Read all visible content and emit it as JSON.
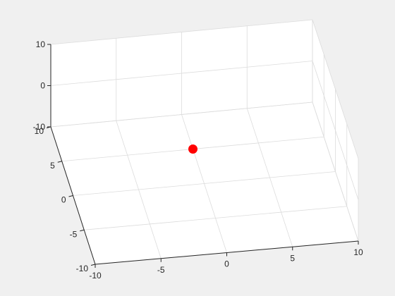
{
  "chart_data": {
    "type": "scatter",
    "title": "",
    "xlabel": "",
    "ylabel": "",
    "zlabel": "",
    "xlim": [
      -10,
      10
    ],
    "ylim": [
      -10,
      10
    ],
    "zlim": [
      -10,
      10
    ],
    "x_ticks": [
      "-10",
      "-5",
      "0",
      "5",
      "10"
    ],
    "y_ticks": [
      "-10",
      "-5",
      "0",
      "5",
      "10"
    ],
    "z_ticks": [
      "-10",
      "0",
      "10"
    ],
    "grid": true,
    "box": true,
    "points": [
      {
        "x": 0,
        "y": 5,
        "z": -10
      }
    ],
    "colors": {
      "marker": "#ff0000",
      "background": "#f0f0f0",
      "axes_face": "#ffffff",
      "grid": "#dcdcdc",
      "axis_line": "#262626"
    }
  }
}
